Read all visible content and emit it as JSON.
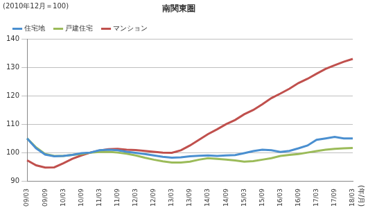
{
  "chart_data": {
    "type": "line",
    "title": "南関東圏",
    "ylabel": "(2010年12月＝100)",
    "xlabel": "(年/月)",
    "categories": [
      "09/03",
      null,
      "09/09",
      null,
      "10/03",
      null,
      "10/09",
      null,
      "11/03",
      null,
      "11/09",
      null,
      "12/03",
      null,
      "12/09",
      null,
      "13/03",
      null,
      "13/09",
      null,
      "14/03",
      null,
      "14/09",
      null,
      "15/03",
      null,
      "15/09",
      null,
      "16/03",
      null,
      "16/09",
      null,
      "17/03",
      null,
      "17/09",
      null,
      "18/03"
    ],
    "series": [
      {
        "name": "住宅地",
        "color": "#4a8fd0",
        "values": [
          105,
          101.5,
          99.3,
          98.7,
          98.8,
          99.2,
          99.8,
          100,
          100.8,
          101,
          100.8,
          100.3,
          99.9,
          99.5,
          99,
          98.5,
          98.2,
          98.3,
          98.7,
          98.9,
          99,
          98.8,
          99,
          99.1,
          99.8,
          100.5,
          101,
          100.8,
          100.2,
          100.6,
          101.5,
          102.5,
          104.5,
          105,
          105.5,
          105,
          105
        ]
      },
      {
        "name": "戸建住宅",
        "color": "#9bbb59",
        "values": [
          105,
          101.8,
          99.5,
          98.8,
          98.8,
          99.2,
          99.5,
          100,
          100.2,
          100.3,
          100,
          99.6,
          99,
          98.2,
          97.5,
          96.9,
          96.5,
          96.5,
          96.8,
          97.5,
          98,
          97.8,
          97.5,
          97.2,
          96.8,
          97,
          97.5,
          98,
          98.8,
          99.2,
          99.5,
          100,
          100.5,
          101,
          101.3,
          101.5,
          101.6
        ]
      },
      {
        "name": "マンション",
        "color": "#c0504d",
        "values": [
          97.3,
          95.5,
          94.7,
          94.8,
          96.2,
          97.8,
          99,
          100,
          100.7,
          101.2,
          101.3,
          101,
          100.9,
          100.6,
          100.3,
          100,
          99.9,
          100.8,
          102.5,
          104.5,
          106.5,
          108.2,
          110,
          111.5,
          113.5,
          115,
          117,
          119.2,
          120.8,
          122.5,
          124.5,
          126,
          127.8,
          129.5,
          130.8,
          132,
          133
        ]
      }
    ],
    "ylim": [
      90,
      140
    ],
    "yticks": [
      90,
      100,
      110,
      120,
      130,
      140
    ],
    "grid": true,
    "legend": "upper left"
  }
}
